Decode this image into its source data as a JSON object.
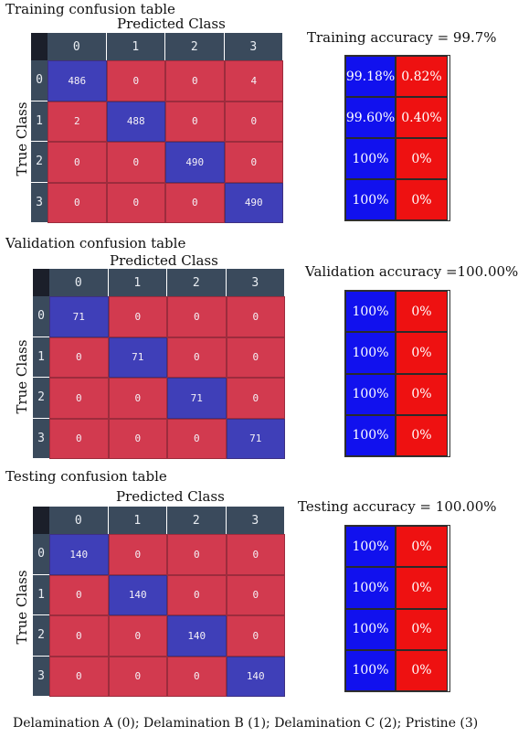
{
  "labels": {
    "predicted_class": "Predicted Class",
    "true_class": "True Class"
  },
  "colors": {
    "diagonal": "#3f3fb8",
    "off_diagonal": "#d23a4f",
    "header": "#3a4a5c",
    "acc_blue": "#1111ee",
    "acc_red": "#ee1111"
  },
  "footer": "Delamination A (0); Delamination B (1); Delamination C (2); Pristine (3)",
  "chart_data": [
    {
      "type": "heatmap",
      "title": "Training confusion table",
      "xlabel": "Predicted Class",
      "ylabel": "True Class",
      "categories": [
        "0",
        "1",
        "2",
        "3"
      ],
      "matrix": [
        [
          486,
          0,
          0,
          4
        ],
        [
          2,
          488,
          0,
          0
        ],
        [
          0,
          0,
          490,
          0
        ],
        [
          0,
          0,
          0,
          490
        ]
      ],
      "accuracy_label": "Training accuracy = 99.7%",
      "accuracy_table": [
        [
          "99.18%",
          "0.82%"
        ],
        [
          "99.60%",
          "0.40%"
        ],
        [
          "100%",
          "0%"
        ],
        [
          "100%",
          "0%"
        ]
      ]
    },
    {
      "type": "heatmap",
      "title": "Validation confusion table",
      "xlabel": "Predicted Class",
      "ylabel": "True Class",
      "categories": [
        "0",
        "1",
        "2",
        "3"
      ],
      "matrix": [
        [
          71,
          0,
          0,
          0
        ],
        [
          0,
          71,
          0,
          0
        ],
        [
          0,
          0,
          71,
          0
        ],
        [
          0,
          0,
          0,
          71
        ]
      ],
      "accuracy_label": "Validation accuracy =100.00%",
      "accuracy_table": [
        [
          "100%",
          "0%"
        ],
        [
          "100%",
          "0%"
        ],
        [
          "100%",
          "0%"
        ],
        [
          "100%",
          "0%"
        ]
      ]
    },
    {
      "type": "heatmap",
      "title": "Testing confusion table",
      "xlabel": "Predicted Class",
      "ylabel": "True Class",
      "categories": [
        "0",
        "1",
        "2",
        "3"
      ],
      "matrix": [
        [
          140,
          0,
          0,
          0
        ],
        [
          0,
          140,
          0,
          0
        ],
        [
          0,
          0,
          140,
          0
        ],
        [
          0,
          0,
          0,
          140
        ]
      ],
      "accuracy_label": "Testing accuracy = 100.00%",
      "accuracy_table": [
        [
          "100%",
          "0%"
        ],
        [
          "100%",
          "0%"
        ],
        [
          "100%",
          "0%"
        ],
        [
          "100%",
          "0%"
        ]
      ]
    }
  ]
}
